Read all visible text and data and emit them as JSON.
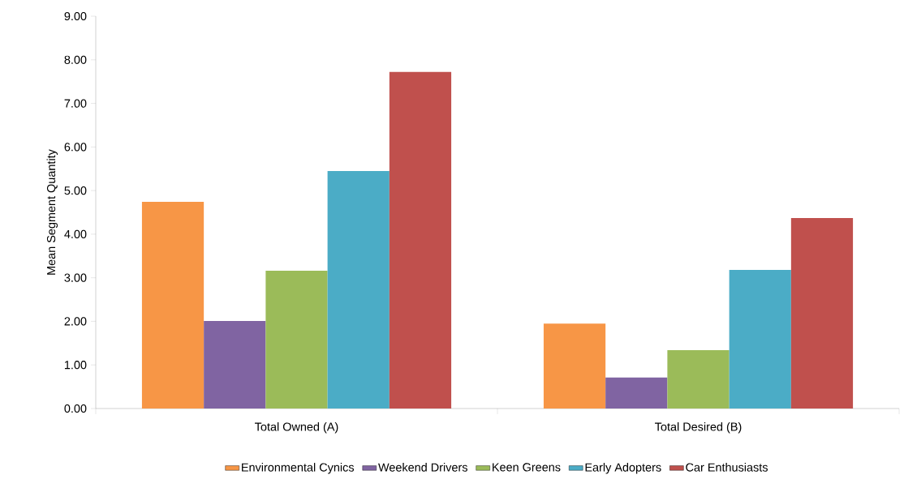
{
  "chart_data": {
    "type": "bar",
    "ylabel": "Mean Segment Quantity",
    "categories": [
      "Total Owned (A)",
      "Total Desired (B)"
    ],
    "series": [
      {
        "name": "Environmental Cynics",
        "color": "#f79646",
        "values": [
          4.74,
          1.95
        ]
      },
      {
        "name": "Weekend Drivers",
        "color": "#8064a2",
        "values": [
          2.01,
          0.71
        ]
      },
      {
        "name": "Keen Greens",
        "color": "#9bbb59",
        "values": [
          3.16,
          1.34
        ]
      },
      {
        "name": "Early Adopters",
        "color": "#4bacc6",
        "values": [
          5.45,
          3.18
        ]
      },
      {
        "name": "Car Enthusiasts",
        "color": "#c0504d",
        "values": [
          7.72,
          4.37
        ]
      }
    ],
    "ylim": [
      0,
      9
    ],
    "yticks": [
      {
        "value": 0,
        "label": "0.00"
      },
      {
        "value": 1,
        "label": "1.00"
      },
      {
        "value": 2,
        "label": "2.00"
      },
      {
        "value": 3,
        "label": "3.00"
      },
      {
        "value": 4,
        "label": "4.00"
      },
      {
        "value": 5,
        "label": "5.00"
      },
      {
        "value": 6,
        "label": "6.00"
      },
      {
        "value": 7,
        "label": "7.00"
      },
      {
        "value": 8,
        "label": "8.00"
      },
      {
        "value": 9,
        "label": "9.00"
      }
    ],
    "grid": false,
    "legend": "bottom"
  }
}
